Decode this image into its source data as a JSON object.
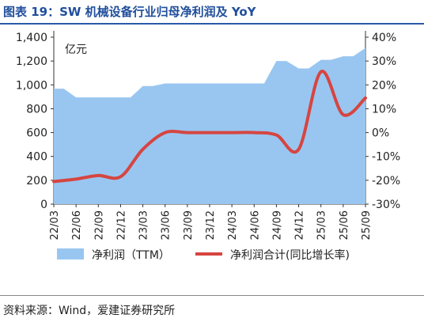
{
  "title": "图表 19：SW 机械设备行业归母净利润及 YoY",
  "source": "资料来源：Wind，爱建证券研究所",
  "colors": {
    "area": "#99c6f0",
    "line": "#d64541",
    "title": "#1f4e9c"
  },
  "chart_data": {
    "type": "area",
    "unit_label": "亿元",
    "categories": [
      "22/03",
      "22/06",
      "22/09",
      "22/12",
      "23/03",
      "23/06",
      "23/09",
      "23/12",
      "24/03",
      "24/06",
      "24/09",
      "24/12",
      "25/03",
      "25/06",
      "25/09"
    ],
    "left_axis": {
      "min": 0,
      "max": 1400,
      "ticks": [
        "0",
        "200",
        "400",
        "600",
        "800",
        "1,000",
        "1,200",
        "1,400"
      ]
    },
    "right_axis": {
      "min": -30,
      "max": 40,
      "ticks": [
        "-30%",
        "-20%",
        "-10%",
        "0%",
        "10%",
        "20%",
        "30%",
        "40%"
      ]
    },
    "series": [
      {
        "name": "净利润（TTM）",
        "type": "area",
        "axis": "left",
        "values": [
          968,
          895,
          895,
          895,
          990,
          1012,
          1012,
          1012,
          1012,
          1012,
          1200,
          1138,
          1210,
          1240,
          1310
        ]
      },
      {
        "name": "净利润合计(同比增长率)",
        "type": "line",
        "axis": "right",
        "values": [
          -20.5,
          -19.5,
          -18.0,
          -18.5,
          -7.0,
          0.0,
          0.0,
          0.0,
          0.0,
          0.0,
          -1.0,
          -7.0,
          25.5,
          7.5,
          14.5
        ]
      }
    ],
    "legend": [
      "净利润（TTM）",
      "净利润合计(同比增长率)"
    ],
    "legend_position": "bottom",
    "grid": false
  }
}
